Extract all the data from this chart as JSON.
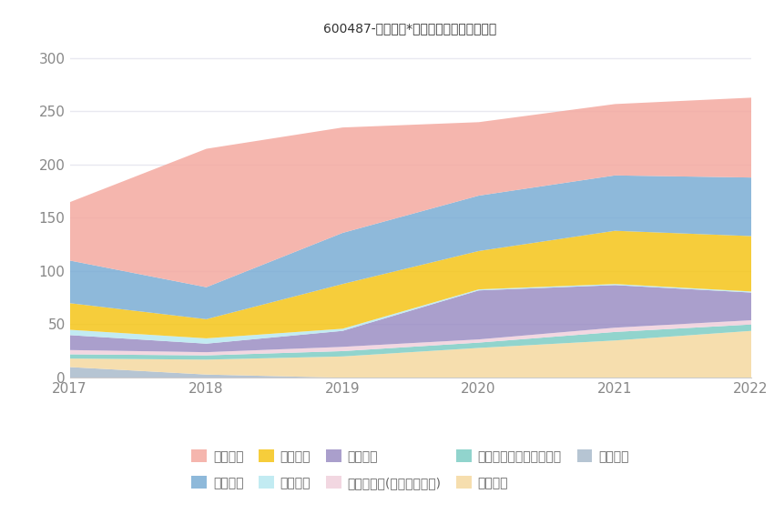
{
  "title": "600487-亨通光电*主要负债堆积图（亿元）",
  "years": [
    2017,
    2018,
    2019,
    2020,
    2021,
    2022
  ],
  "series": [
    {
      "name": "应付债券",
      "color": "#aabbcc",
      "values": [
        10,
        3,
        0,
        0,
        0,
        0
      ]
    },
    {
      "name": "长期借款",
      "color": "#f5d9a0",
      "values": [
        8,
        14,
        20,
        28,
        35,
        44
      ]
    },
    {
      "name": "一年内到期的非流动负债",
      "color": "#7ecdc5",
      "values": [
        4,
        4,
        5,
        5,
        8,
        6
      ]
    },
    {
      "name": "其他应付款(含利息和股利)",
      "color": "#f0d0dc",
      "values": [
        4,
        3,
        4,
        3,
        4,
        4
      ]
    },
    {
      "name": "合同负债",
      "color": "#9b8ec4",
      "values": [
        14,
        8,
        15,
        46,
        40,
        26
      ]
    },
    {
      "name": "预收款项",
      "color": "#b8e8f0",
      "values": [
        5,
        5,
        2,
        1,
        1,
        1
      ]
    },
    {
      "name": "应付账款",
      "color": "#f5c518",
      "values": [
        25,
        18,
        42,
        36,
        50,
        52
      ]
    },
    {
      "name": "应付票据",
      "color": "#7aadd4",
      "values": [
        40,
        30,
        48,
        52,
        52,
        55
      ]
    },
    {
      "name": "短期借款",
      "color": "#f4a9a0",
      "values": [
        55,
        130,
        99,
        69,
        67,
        75
      ]
    }
  ],
  "ylim": [
    0,
    310
  ],
  "yticks": [
    0,
    50,
    100,
    150,
    200,
    250,
    300
  ],
  "background_color": "#ffffff",
  "grid_color": "#e8e8f0",
  "title_fontsize": 15,
  "legend_order": [
    8,
    7,
    6,
    5,
    4,
    3,
    2,
    1,
    0
  ]
}
